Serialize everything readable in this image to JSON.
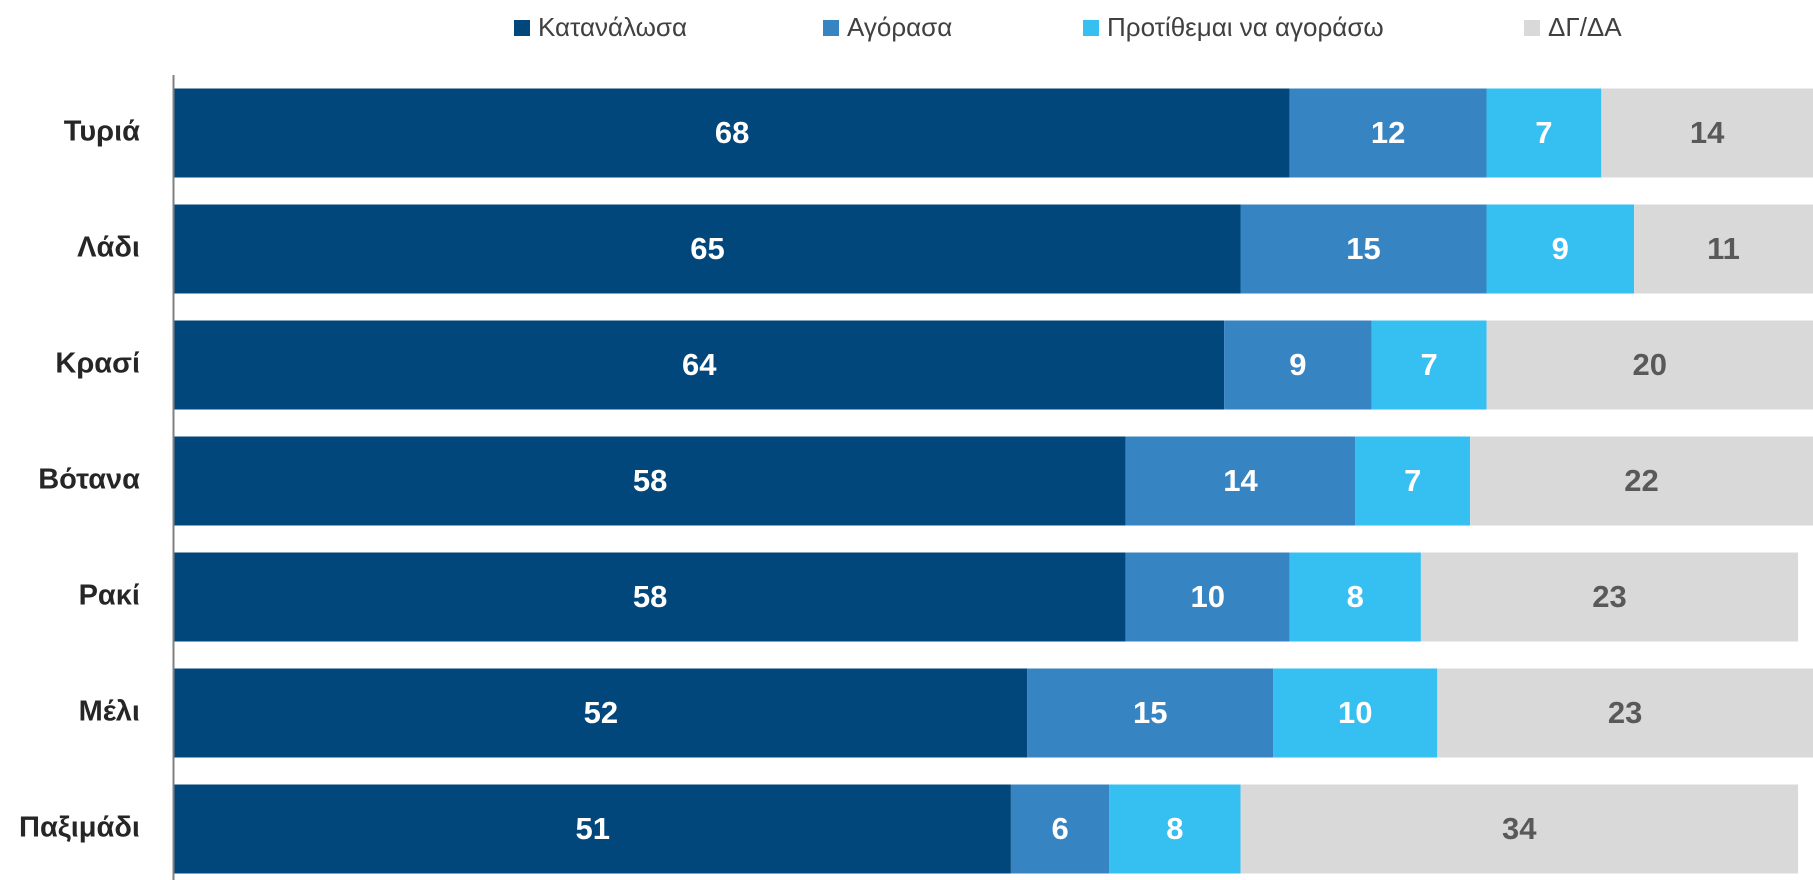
{
  "chart_data": {
    "type": "stacked_barh",
    "categories": [
      "Τυριά",
      "Λάδι",
      "Κρασί",
      "Βότανα",
      "Ρακί",
      "Μέλι",
      "Παξιμάδι"
    ],
    "series": [
      {
        "name": "Κατανάλωσα",
        "color": "#02477b",
        "label_color": "#ffffff",
        "values": [
          68,
          65,
          64,
          58,
          58,
          52,
          51
        ]
      },
      {
        "name": "Αγόρασα",
        "color": "#3784c2",
        "label_color": "#ffffff",
        "values": [
          12,
          15,
          9,
          14,
          10,
          15,
          6
        ]
      },
      {
        "name": "Προτίθεμαι να αγοράσω",
        "color": "#36bff1",
        "label_color": "#ffffff",
        "values": [
          7,
          9,
          7,
          7,
          8,
          10,
          8
        ]
      },
      {
        "name": "ΔΓ/ΔΑ",
        "color": "#d9d9d9",
        "label_color": "#595959",
        "values": [
          14,
          11,
          20,
          22,
          23,
          23,
          34
        ]
      }
    ],
    "xlim": [
      0,
      100
    ],
    "legend": "top"
  }
}
